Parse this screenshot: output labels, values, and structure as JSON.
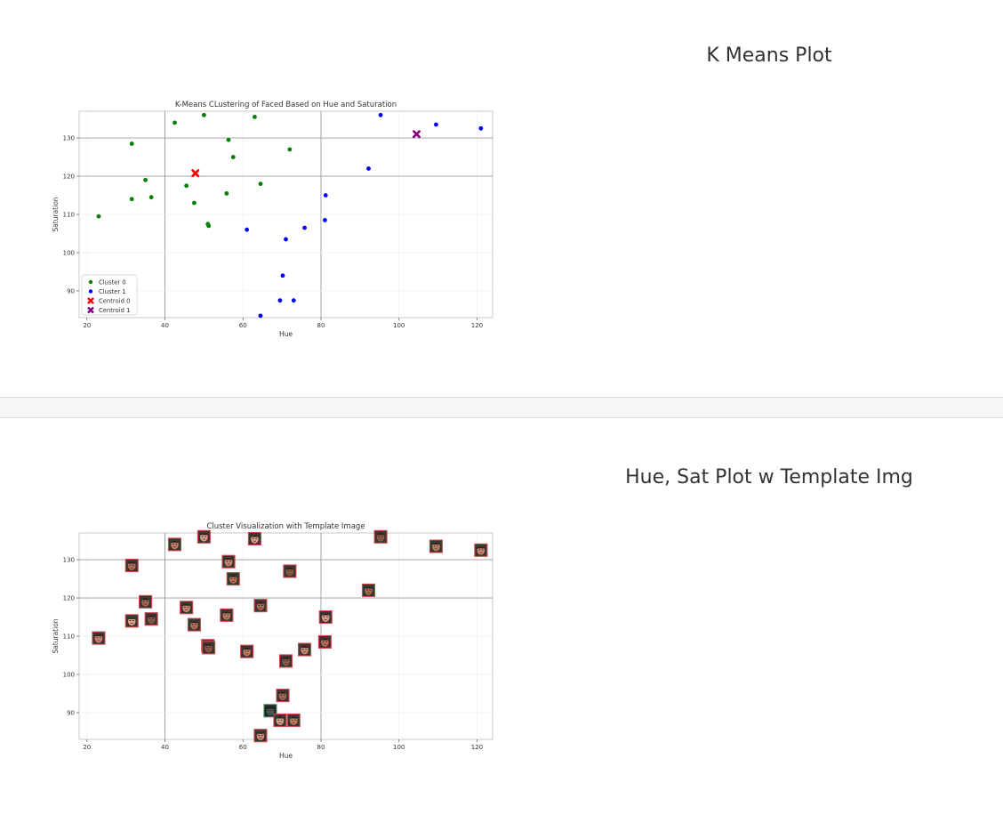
{
  "sections": [
    {
      "heading": "K Means Plot"
    },
    {
      "heading": "Hue, Sat Plot w Template Img"
    }
  ],
  "chart_data": [
    {
      "type": "scatter",
      "title": "K-Means CLustering of Faced Based on Hue and Saturation",
      "xlabel": "Hue",
      "ylabel": "Saturation",
      "xlim": [
        18,
        124
      ],
      "ylim": [
        83,
        137
      ],
      "xticks": [
        20,
        40,
        60,
        80,
        100,
        120
      ],
      "yticks": [
        90,
        100,
        110,
        120,
        130
      ],
      "grid": true,
      "legend_position": "bottom-left",
      "series": [
        {
          "name": "Cluster 0",
          "color": "#008000",
          "marker": "circle",
          "x": [
            23,
            31.5,
            31.5,
            35,
            36.5,
            42.5,
            45.5,
            47.5,
            50,
            51,
            51.2,
            55.8,
            56.3,
            57.5,
            63,
            64.5,
            72
          ],
          "y": [
            109.5,
            128.5,
            114,
            119,
            114.5,
            134,
            117.5,
            113,
            136,
            107.5,
            107,
            115.5,
            129.5,
            125,
            135.5,
            118,
            127
          ]
        },
        {
          "name": "Cluster 1",
          "color": "#0000ff",
          "marker": "circle",
          "x": [
            61,
            64.5,
            69.5,
            70.2,
            71,
            73,
            75.8,
            81,
            81.2,
            92.2,
            95.3,
            109.5,
            121
          ],
          "y": [
            106,
            83.5,
            87.5,
            94,
            103.5,
            87.5,
            106.5,
            108.5,
            115,
            122,
            136,
            133.5,
            132.5
          ]
        },
        {
          "name": "Centroid 0",
          "color": "#ff0000",
          "marker": "x",
          "x": [
            47.8
          ],
          "y": [
            120.8
          ]
        },
        {
          "name": "Centroid 1",
          "color": "#800080",
          "marker": "x",
          "x": [
            104.5
          ],
          "y": [
            131
          ]
        }
      ]
    },
    {
      "type": "scatter",
      "title": "Cluster Visualization with Template Image",
      "xlabel": "Hue",
      "ylabel": "Saturation",
      "xlim": [
        18,
        124
      ],
      "ylim": [
        83,
        137
      ],
      "xticks": [
        20,
        40,
        60,
        80,
        100,
        120
      ],
      "yticks": [
        90,
        100,
        110,
        120,
        130
      ],
      "grid": true,
      "marker": "face-thumbnail",
      "x": [
        23,
        31.5,
        31.5,
        35,
        36.5,
        42.5,
        45.5,
        47.5,
        50,
        51,
        51.2,
        55.8,
        56.3,
        57.5,
        63,
        64.5,
        72,
        61,
        64.5,
        67,
        69.5,
        70.2,
        71,
        73,
        75.8,
        81,
        81.2,
        92.2,
        95.3,
        109.5,
        121
      ],
      "y": [
        109.5,
        128.5,
        114,
        119,
        114.5,
        134,
        117.5,
        113,
        136,
        107.5,
        107,
        115.5,
        129.5,
        125,
        135.5,
        118,
        127,
        106,
        84,
        90.5,
        88,
        94.5,
        103.5,
        88,
        106.5,
        108.5,
        115,
        122,
        136,
        133.5,
        132.5
      ]
    }
  ]
}
